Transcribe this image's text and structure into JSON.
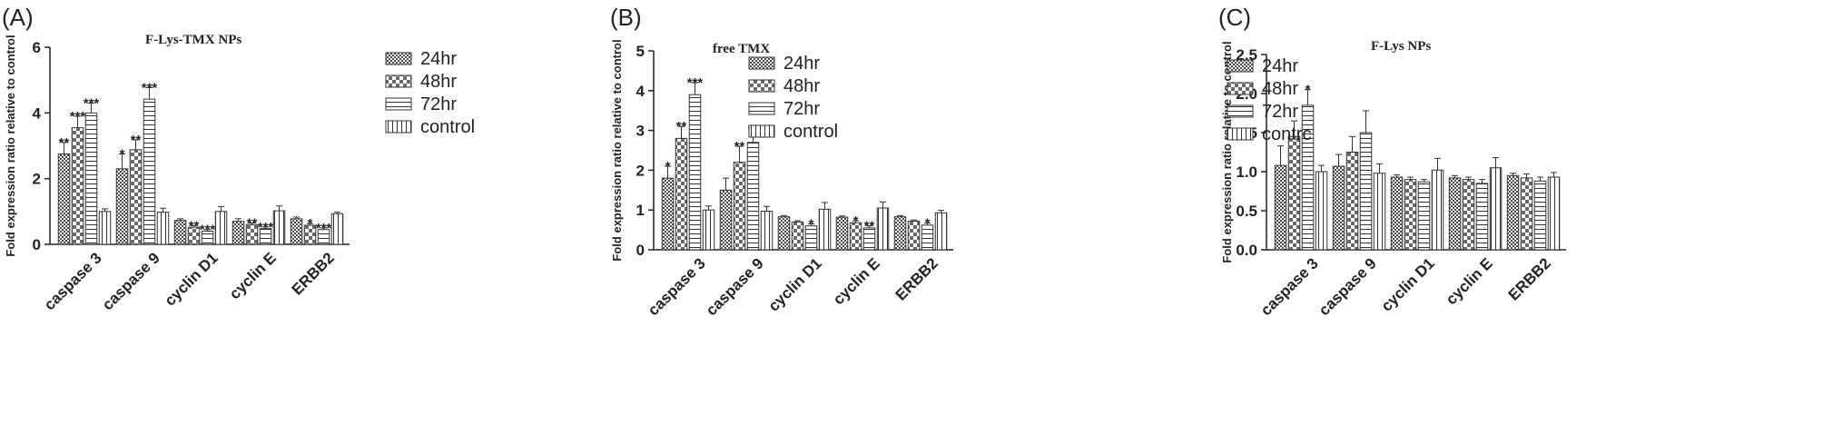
{
  "chart_data": [
    {
      "type": "bar",
      "panel_label": "(A)",
      "title": "F-Lys-TMX NPs",
      "ylabel": "Fold expression ratio relative to control",
      "ylim": [
        0,
        6
      ],
      "yticks": [
        "0",
        "2",
        "4",
        "6"
      ],
      "categories": [
        "caspase 3",
        "caspase 9",
        "cyclin D1",
        "cyclin E",
        "ERBB2"
      ],
      "legend_position": "right",
      "series": [
        {
          "name": "24hr",
          "values": [
            2.75,
            2.3,
            0.73,
            0.7,
            0.78
          ],
          "errors": [
            0.35,
            0.45,
            0.05,
            0.08,
            0.05
          ],
          "sig": [
            "**",
            "*",
            "",
            "",
            ""
          ]
        },
        {
          "name": "48hr",
          "values": [
            3.55,
            2.88,
            0.52,
            0.6,
            0.58
          ],
          "errors": [
            0.35,
            0.3,
            0.05,
            0.05,
            0.05
          ],
          "sig": [
            "***",
            "**",
            "**",
            "**",
            "*"
          ]
        },
        {
          "name": "72hr",
          "values": [
            4.0,
            4.42,
            0.4,
            0.48,
            0.45
          ],
          "errors": [
            0.3,
            0.35,
            0.05,
            0.05,
            0.05
          ],
          "sig": [
            "***",
            "***",
            "***",
            "***",
            "***"
          ]
        },
        {
          "name": "control",
          "values": [
            1.0,
            0.98,
            1.0,
            1.02,
            0.93
          ],
          "errors": [
            0.08,
            0.12,
            0.15,
            0.15,
            0.05
          ],
          "sig": [
            "",
            "",
            "",
            "",
            ""
          ]
        }
      ]
    },
    {
      "type": "bar",
      "panel_label": "(B)",
      "title": "free TMX",
      "ylabel": "Fold expression ratio relative to control",
      "ylim": [
        0,
        5
      ],
      "yticks": [
        "0",
        "1",
        "2",
        "3",
        "4",
        "5"
      ],
      "categories": [
        "caspase 3",
        "caspase 9",
        "cyclin D1",
        "cyclin E",
        "ERBB2"
      ],
      "legend_position": "right",
      "series": [
        {
          "name": "24hr",
          "values": [
            1.8,
            1.5,
            0.83,
            0.82,
            0.83
          ],
          "errors": [
            0.3,
            0.3,
            0.03,
            0.03,
            0.03
          ],
          "sig": [
            "*",
            "",
            "",
            "",
            ""
          ]
        },
        {
          "name": "48hr",
          "values": [
            2.8,
            2.2,
            0.7,
            0.68,
            0.72
          ],
          "errors": [
            0.3,
            0.4,
            0.03,
            0.05,
            0.03
          ],
          "sig": [
            "**",
            "**",
            "",
            "*",
            ""
          ]
        },
        {
          "name": "72hr",
          "values": [
            3.9,
            2.7,
            0.6,
            0.55,
            0.62
          ],
          "errors": [
            0.3,
            0.3,
            0.05,
            0.05,
            0.05
          ],
          "sig": [
            "***",
            "**",
            "*",
            "**",
            "*"
          ]
        },
        {
          "name": "control",
          "values": [
            1.0,
            0.97,
            1.02,
            1.05,
            0.93
          ],
          "errors": [
            0.1,
            0.12,
            0.17,
            0.15,
            0.06
          ],
          "sig": [
            "",
            "",
            "",
            "",
            ""
          ]
        }
      ]
    },
    {
      "type": "bar",
      "panel_label": "(C)",
      "title": "F-Lys NPs",
      "ylabel": "Fold expression ratio relative to control",
      "ylim": [
        0,
        2.5
      ],
      "yticks": [
        "0.0",
        "0.5",
        "1.0",
        "1.5",
        "2.0",
        "2.5"
      ],
      "categories": [
        "caspase 3",
        "caspase 9",
        "cyclin D1",
        "cyclin E",
        "ERBB2"
      ],
      "legend_position": "right",
      "series": [
        {
          "name": "24hr",
          "values": [
            1.08,
            1.07,
            0.93,
            0.92,
            0.95
          ],
          "errors": [
            0.25,
            0.15,
            0.03,
            0.03,
            0.03
          ],
          "sig": [
            "",
            "",
            "",
            "",
            ""
          ]
        },
        {
          "name": "48hr",
          "values": [
            1.45,
            1.25,
            0.9,
            0.9,
            0.92
          ],
          "errors": [
            0.2,
            0.2,
            0.03,
            0.03,
            0.05
          ],
          "sig": [
            "",
            "",
            "",
            "",
            ""
          ]
        },
        {
          "name": "72hr",
          "values": [
            1.85,
            1.5,
            0.87,
            0.85,
            0.88
          ],
          "errors": [
            0.2,
            0.28,
            0.03,
            0.05,
            0.05
          ],
          "sig": [
            "*",
            "",
            "",
            "",
            ""
          ]
        },
        {
          "name": "control",
          "values": [
            1.0,
            0.98,
            1.02,
            1.05,
            0.93
          ],
          "errors": [
            0.08,
            0.12,
            0.15,
            0.13,
            0.06
          ],
          "sig": [
            "",
            "",
            "",
            "",
            ""
          ]
        }
      ]
    }
  ],
  "legend_labels": [
    [
      "24hr",
      "48hr",
      "72hr",
      "control"
    ],
    [
      "24hr",
      "48hr",
      "72hr",
      "control"
    ],
    [
      "24hr",
      "48hr",
      "72hr",
      "contrc"
    ]
  ]
}
